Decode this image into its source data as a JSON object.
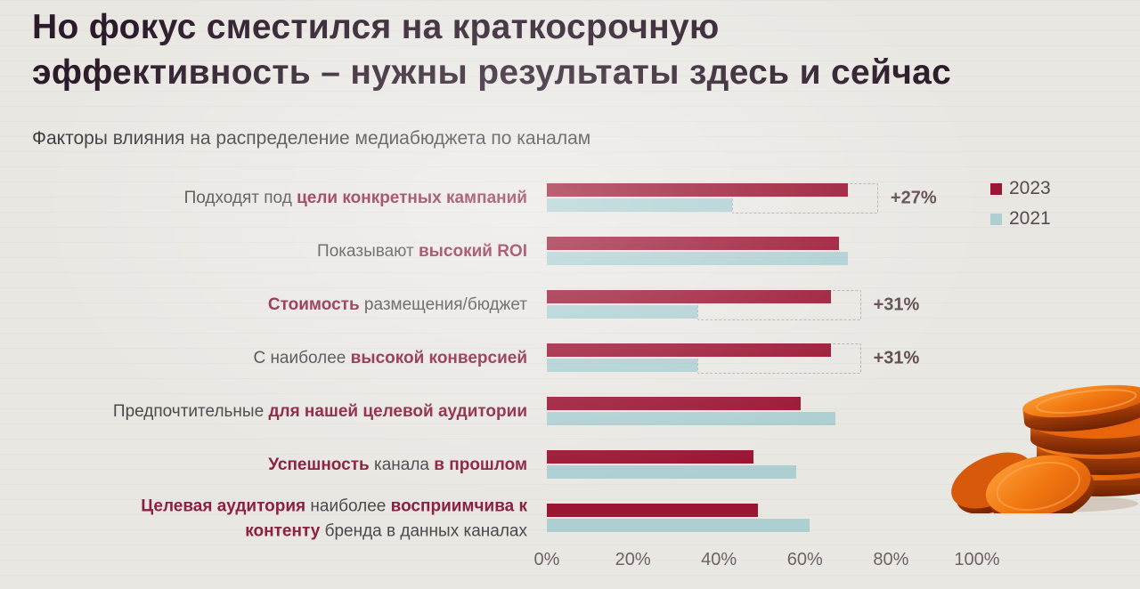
{
  "title": "Но фокус сместился на краткосрочную эффективность – нужны результаты здесь и сейчас",
  "subtitle": "Факторы влияния на распределение медиабюджета по каналам",
  "legend": {
    "items": [
      {
        "label": "2023",
        "color": "#9A1532"
      },
      {
        "label": "2021",
        "color": "#ADCFD2"
      }
    ]
  },
  "colors": {
    "background": "#e9e7e2",
    "title_text": "#2b1a2a",
    "label_regular": "#4d474b",
    "label_accent": "#8b2040",
    "delta_text": "#5e4b4f",
    "axis_text": "#6e6167",
    "dashed_bracket": "#b6b0a7",
    "coins_orange": "#f2770f"
  },
  "chart_data": {
    "type": "bar",
    "orientation": "horizontal",
    "title": "Факторы влияния на распределение медиабюджета по каналам",
    "categories": [
      "Подходят под цели конкретных кампаний",
      "Показывают высокий ROI",
      "Стоимость размещения/бюджет",
      "С наиболее высокой конверсией",
      "Предпочтительные для нашей целевой аудитории",
      "Успешность канала в прошлом",
      "Целевая аудитория наиболее восприимчива к контенту бренда в данных каналах"
    ],
    "series": [
      {
        "name": "2023",
        "color": "#9A1532",
        "values": [
          70,
          68,
          66,
          66,
          59,
          48,
          49
        ]
      },
      {
        "name": "2021",
        "color": "#ADCFD2",
        "values": [
          43,
          70,
          35,
          35,
          67,
          58,
          61
        ]
      }
    ],
    "deltas": [
      "+27%",
      "",
      "+31%",
      "+31%",
      "",
      "",
      ""
    ],
    "xticks": [
      "0%",
      "20%",
      "40%",
      "60%",
      "80%",
      "100%"
    ],
    "xlim": [
      0,
      100
    ],
    "grid": false,
    "legend_position": "top-right"
  },
  "category_segments": [
    [
      {
        "t": "Подходят под ",
        "em": false
      },
      {
        "t": "цели конкретных кампаний",
        "em": true
      }
    ],
    [
      {
        "t": "Показывают ",
        "em": false
      },
      {
        "t": "высокий ROI",
        "em": true
      }
    ],
    [
      {
        "t": "Стоимость",
        "em": true
      },
      {
        "t": " размещения/бюджет",
        "em": false
      }
    ],
    [
      {
        "t": "С наиболее ",
        "em": false
      },
      {
        "t": "высокой конверсией",
        "em": true
      }
    ],
    [
      {
        "t": "Предпочтительные ",
        "em": false
      },
      {
        "t": "для нашей целевой аудитории",
        "em": true
      }
    ],
    [
      {
        "t": "Успешность",
        "em": true
      },
      {
        "t": " канала ",
        "em": false
      },
      {
        "t": "в прошлом",
        "em": true
      }
    ],
    [
      {
        "t": "Целевая аудитория",
        "em": true
      },
      {
        "t": " наиболее ",
        "em": false
      },
      {
        "t": "восприимчива к",
        "em": true
      },
      {
        "br": true
      },
      {
        "t": "контенту",
        "em": true
      },
      {
        "t": " бренда в данных каналах",
        "em": false
      }
    ]
  ]
}
